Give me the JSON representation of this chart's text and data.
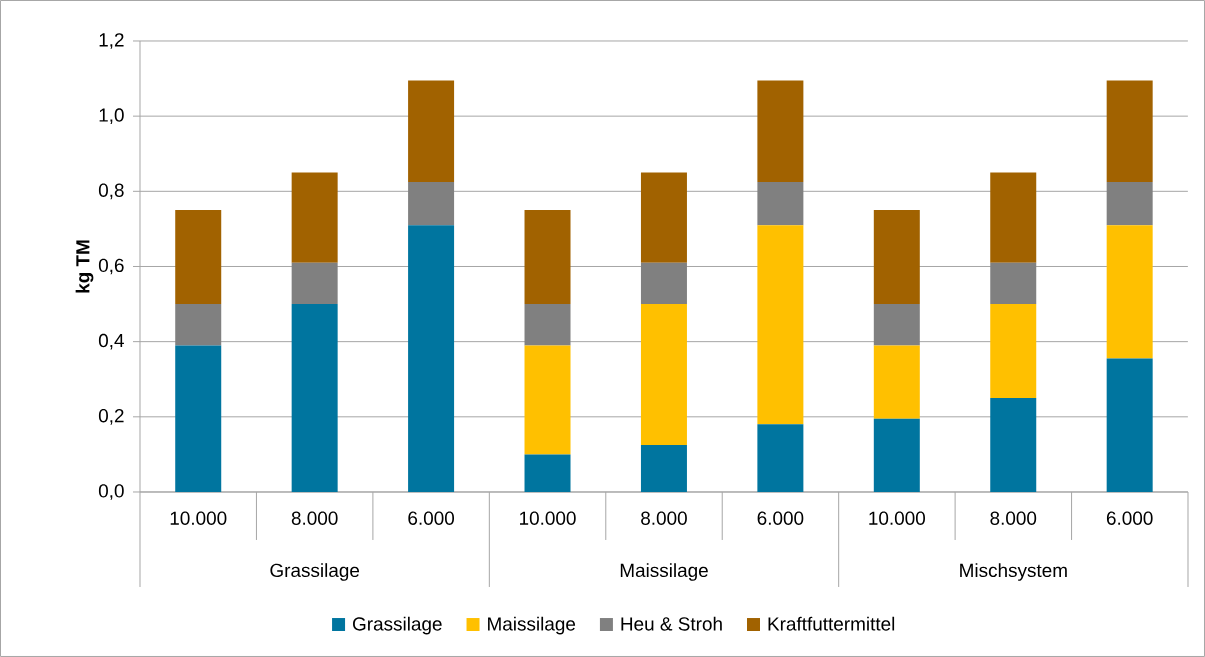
{
  "chart_data": {
    "type": "bar",
    "stacked": true,
    "ylabel": "kg TM",
    "categories": [
      "10.000",
      "8.000",
      "6.000",
      "10.000",
      "8.000",
      "6.000",
      "10.000",
      "8.000",
      "6.000"
    ],
    "annotations": [
      "Grassilage",
      "Maissilage",
      "Mischsystem"
    ],
    "series": [
      {
        "name": "Grassilage",
        "color": "#00759f",
        "values": [
          0.39,
          0.5,
          0.71,
          0.1,
          0.125,
          0.18,
          0.195,
          0.25,
          0.355
        ]
      },
      {
        "name": "Maissilage",
        "color": "#ffc000",
        "values": [
          0,
          0,
          0,
          0.29,
          0.375,
          0.53,
          0.195,
          0.25,
          0.355
        ]
      },
      {
        "name": "Heu & Stroh",
        "color": "#808080",
        "values": [
          0.11,
          0.11,
          0.115,
          0.11,
          0.11,
          0.115,
          0.11,
          0.11,
          0.115
        ]
      },
      {
        "name": "Kraftfuttermittel",
        "color": "#a16200",
        "values": [
          0.25,
          0.24,
          0.27,
          0.25,
          0.24,
          0.27,
          0.25,
          0.24,
          0.27
        ]
      }
    ],
    "ylim": [
      0,
      1.2
    ],
    "yticks": [
      {
        "value": 0,
        "label": "0,0"
      },
      {
        "value": 0.2,
        "label": "0,2"
      },
      {
        "value": 0.4,
        "label": "0,4"
      },
      {
        "value": 0.6,
        "label": "0,6"
      },
      {
        "value": 0.8,
        "label": "0,8"
      },
      {
        "value": 1.0,
        "label": "1,0"
      },
      {
        "value": 1.2,
        "label": "1,2"
      }
    ],
    "grid": "y",
    "legend": "bottom"
  }
}
